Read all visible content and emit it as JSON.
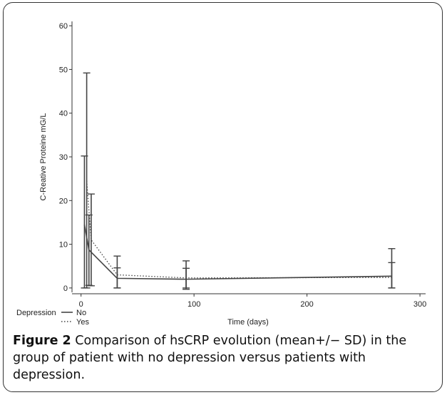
{
  "figure": {
    "caption_label": "Figure 2",
    "caption_text": "Comparison of hsCRP evolution (mean+/− SD) in the group of patient with no depression versus patients with depression."
  },
  "chart_data": {
    "type": "line",
    "xlabel": "Time (days)",
    "ylabel": "C-Reative Proteine mG/L",
    "xlim": [
      -8,
      305
    ],
    "ylim": [
      -1,
      61
    ],
    "xticks": [
      0,
      100,
      200,
      300
    ],
    "yticks": [
      0,
      10,
      20,
      30,
      40,
      50,
      60
    ],
    "grid": false,
    "legend": {
      "title": "Depression",
      "placement": "bottom-left",
      "entries": [
        "No",
        "Yes"
      ]
    },
    "series": [
      {
        "name": "No",
        "style": "solid",
        "color": "#444444",
        "x": [
          3,
          7,
          32,
          93,
          275
        ],
        "y": [
          14.5,
          8.7,
          2.2,
          2.0,
          2.7
        ],
        "error_low": [
          0,
          0.6,
          0,
          0,
          0
        ],
        "error_high": [
          30.2,
          16.7,
          4.6,
          4.5,
          5.8
        ]
      },
      {
        "name": "Yes",
        "style": "dotted",
        "color": "#444444",
        "x": [
          5,
          9,
          32,
          93,
          275
        ],
        "y": [
          24.5,
          11.0,
          3.0,
          2.3,
          2.4
        ],
        "error_low": [
          0,
          0.5,
          0,
          -0.3,
          0
        ],
        "error_high": [
          49.2,
          21.5,
          7.3,
          6.2,
          9.0
        ]
      }
    ]
  }
}
